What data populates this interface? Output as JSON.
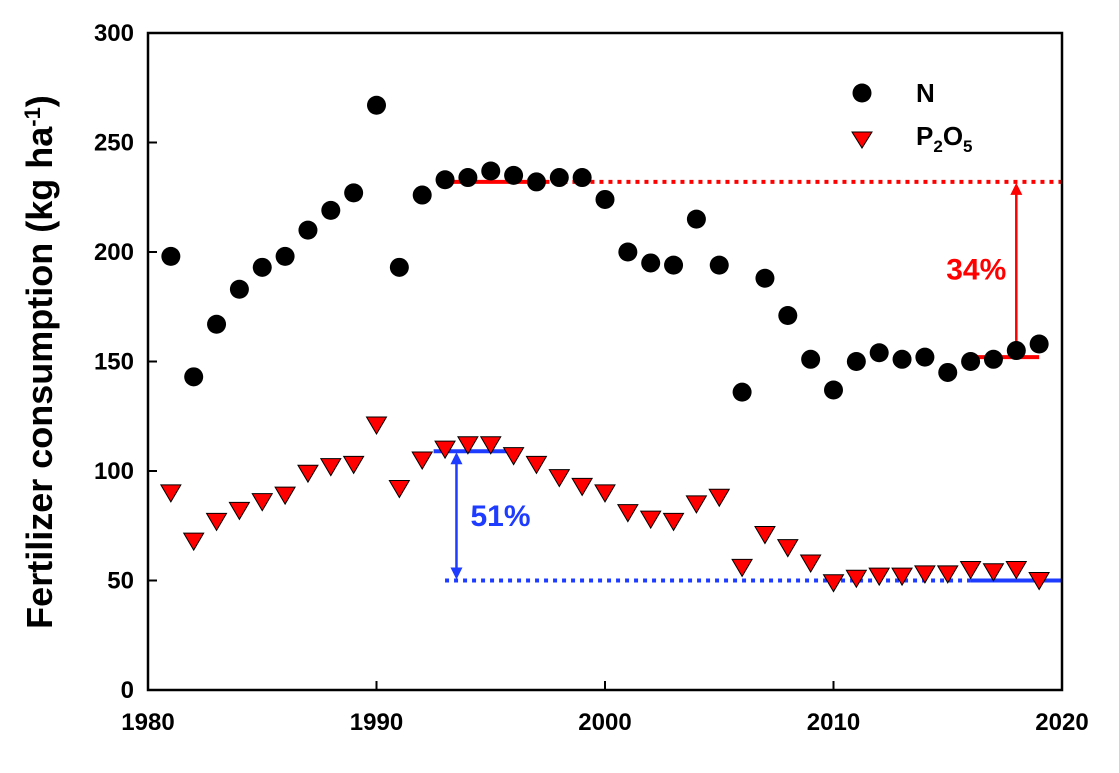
{
  "chart_data": {
    "type": "scatter",
    "title": "",
    "xlabel": "",
    "ylabel": {
      "main": "Fertilizer consumption (kg ha",
      "sup": "-1",
      "close": ")"
    },
    "xlim": [
      1980,
      2020
    ],
    "ylim": [
      0,
      300
    ],
    "xticks": [
      "1980",
      "1990",
      "2000",
      "2010",
      "2020"
    ],
    "yticks": [
      "0",
      "50",
      "100",
      "150",
      "200",
      "250",
      "300"
    ],
    "grid": false,
    "legend_position": "top-right",
    "series": [
      {
        "name": "N",
        "marker": "circle",
        "color": "#000000",
        "x": [
          1981,
          1982,
          1983,
          1984,
          1985,
          1986,
          1987,
          1988,
          1989,
          1990,
          1991,
          1992,
          1993,
          1994,
          1995,
          1996,
          1997,
          1998,
          1999,
          2000,
          2001,
          2002,
          2003,
          2004,
          2005,
          2006,
          2007,
          2008,
          2009,
          2010,
          2011,
          2012,
          2013,
          2014,
          2015,
          2016,
          2017,
          2018,
          2019
        ],
        "y": [
          198,
          143,
          167,
          183,
          193,
          198,
          210,
          219,
          227,
          267,
          193,
          226,
          233,
          234,
          237,
          235,
          232,
          234,
          234,
          224,
          200,
          195,
          194,
          215,
          194,
          136,
          188,
          171,
          151,
          137,
          150,
          154,
          151,
          152,
          145,
          150,
          151,
          155,
          158
        ]
      },
      {
        "name": "P2O5",
        "label_parts": [
          "P",
          "2",
          "O",
          "5"
        ],
        "marker": "triangle-down",
        "color": "#ff0000",
        "x": [
          1981,
          1982,
          1983,
          1984,
          1985,
          1986,
          1987,
          1988,
          1989,
          1990,
          1991,
          1992,
          1993,
          1994,
          1995,
          1996,
          1997,
          1998,
          1999,
          2000,
          2001,
          2002,
          2003,
          2004,
          2005,
          2006,
          2007,
          2008,
          2009,
          2010,
          2011,
          2012,
          2013,
          2014,
          2015,
          2016,
          2017,
          2018,
          2019
        ],
        "y": [
          90,
          68,
          77,
          82,
          86,
          89,
          99,
          102,
          103,
          121,
          92,
          105,
          110,
          112,
          112,
          107,
          103,
          97,
          93,
          90,
          81,
          78,
          77,
          85,
          88,
          56,
          71,
          65,
          58,
          49,
          51,
          52,
          52,
          53,
          53,
          55,
          54,
          55,
          50
        ]
      }
    ],
    "annotations": [
      {
        "label": "34%",
        "color": "#ff0000",
        "solid_lines": [
          {
            "x": [
              1993,
              1997
            ],
            "y": 232
          },
          {
            "x": [
              2016,
              2019
            ],
            "y": 152
          }
        ],
        "dotted_line": {
          "x": [
            1997,
            2020
          ],
          "y": 232
        },
        "arrow": {
          "x": 2018,
          "y": [
            152,
            232
          ]
        }
      },
      {
        "label": "51%",
        "color": "#1e3cff",
        "solid_lines": [
          {
            "x": [
              1992.5,
              1996
            ],
            "y": 109
          },
          {
            "x": [
              2016,
              2020
            ],
            "y": 50
          }
        ],
        "dotted_line": {
          "x": [
            1993,
            2016
          ],
          "y": 50
        },
        "arrow": {
          "x": 1993.5,
          "y": [
            50,
            109
          ]
        }
      }
    ]
  }
}
